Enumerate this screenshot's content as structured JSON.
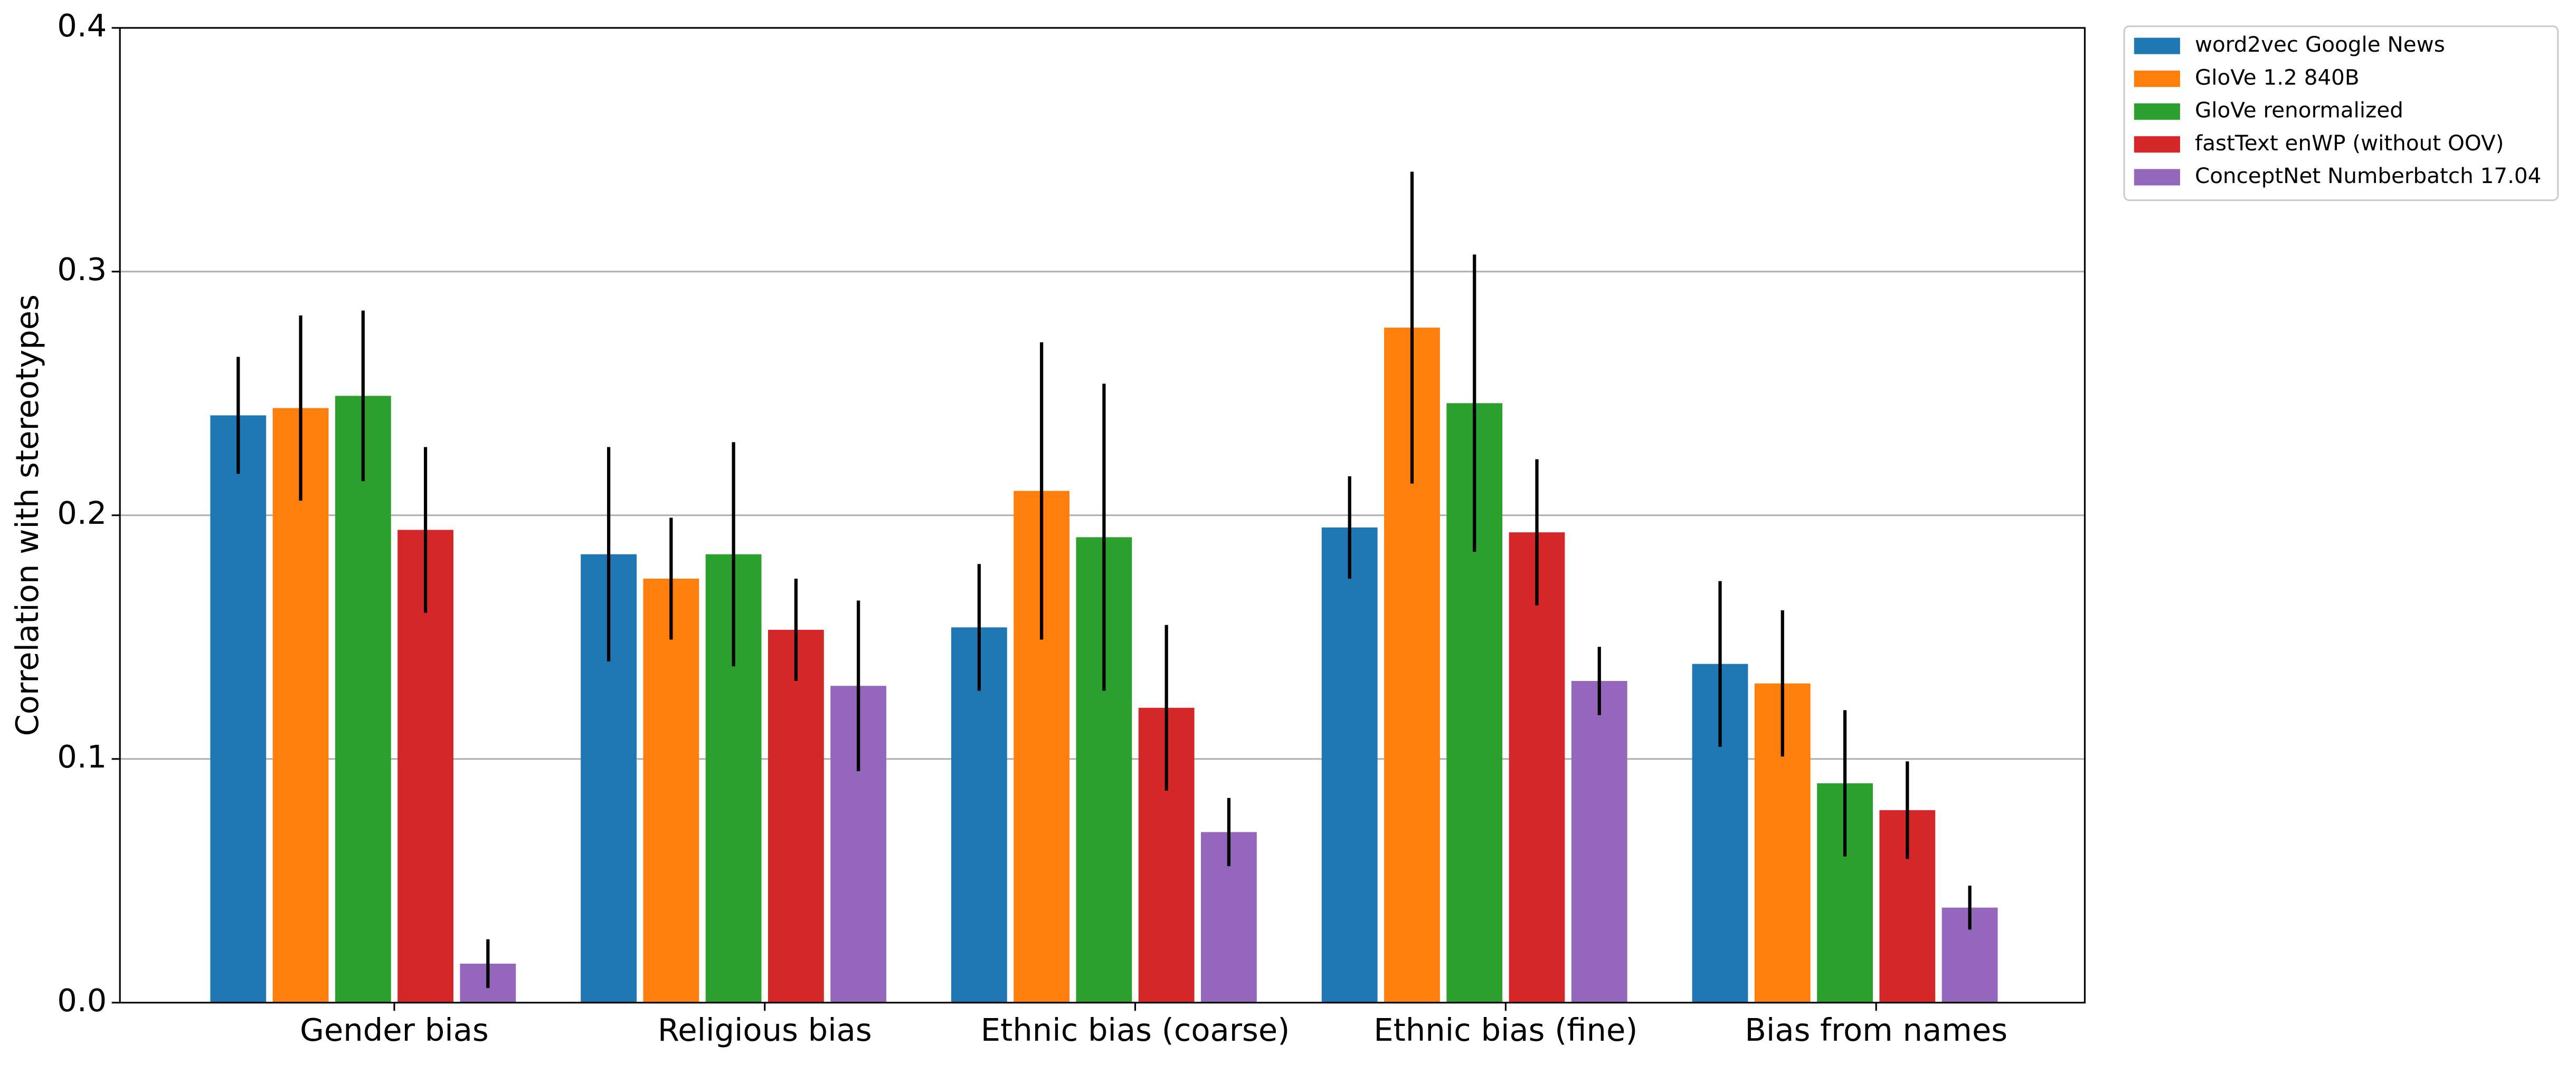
{
  "chart_data": {
    "type": "bar",
    "y_label": "Correlation with stereotypes",
    "categories": [
      "Gender bias",
      "Religious bias",
      "Ethnic bias (coarse)",
      "Ethnic bias (fine)",
      "Bias from names"
    ],
    "series": [
      {
        "name": "word2vec Google News",
        "color": "#1f77b4",
        "values": [
          0.241,
          0.184,
          0.154,
          0.195,
          0.139
        ],
        "errors": [
          0.024,
          0.044,
          0.026,
          0.021,
          0.034
        ]
      },
      {
        "name": "GloVe 1.2 840B",
        "color": "#ff7f0e",
        "values": [
          0.244,
          0.174,
          0.21,
          0.277,
          0.131
        ],
        "errors": [
          0.038,
          0.025,
          0.061,
          0.064,
          0.03
        ]
      },
      {
        "name": "GloVe renormalized",
        "color": "#2ca02c",
        "values": [
          0.249,
          0.184,
          0.191,
          0.246,
          0.09
        ],
        "errors": [
          0.035,
          0.046,
          0.063,
          0.061,
          0.03
        ]
      },
      {
        "name": "fastText enWP (without OOV)",
        "color": "#d62728",
        "values": [
          0.194,
          0.153,
          0.121,
          0.193,
          0.079
        ],
        "errors": [
          0.034,
          0.021,
          0.034,
          0.03,
          0.02
        ]
      },
      {
        "name": "ConceptNet Numberbatch 17.04",
        "color": "#9467bd",
        "values": [
          0.016,
          0.13,
          0.07,
          0.132,
          0.039
        ],
        "errors": [
          0.01,
          0.035,
          0.014,
          0.014,
          0.009
        ]
      }
    ],
    "ylim": [
      0,
      0.4
    ],
    "yticks": [
      {
        "value": 0,
        "label": "0.0"
      },
      0.1,
      0.2,
      0.3,
      0.4
    ],
    "grid": true,
    "legend": "outside-upper-right"
  }
}
